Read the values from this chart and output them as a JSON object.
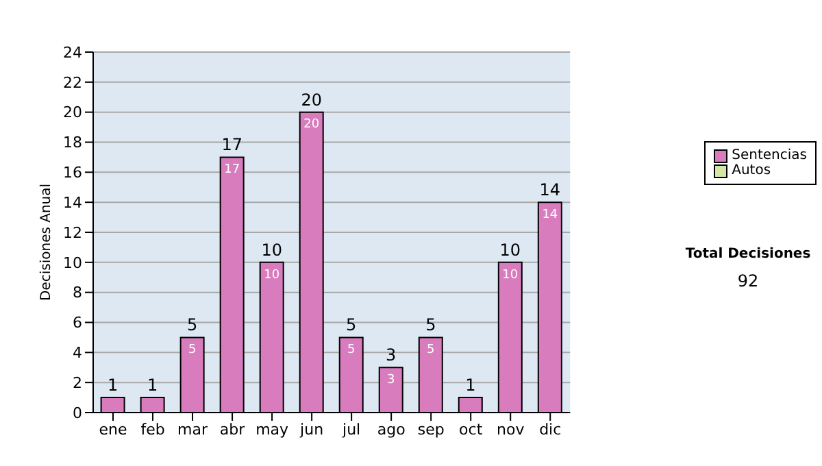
{
  "chart_data": {
    "type": "bar",
    "ylabel": "Decisiones Anual",
    "categories": [
      "ene",
      "feb",
      "mar",
      "abr",
      "may",
      "jun",
      "jul",
      "ago",
      "sep",
      "oct",
      "nov",
      "dic"
    ],
    "series": [
      {
        "name": "Sentencias",
        "color": "#d97cbe",
        "values": [
          1,
          1,
          5,
          17,
          10,
          20,
          5,
          3,
          5,
          1,
          10,
          14
        ],
        "value_labels": [
          null,
          null,
          "5",
          "17",
          "10",
          "20",
          "5",
          "3",
          "5",
          null,
          "10",
          "14"
        ]
      },
      {
        "name": "Autos",
        "color": "#d4e6a6",
        "values": [
          0,
          0,
          0,
          0,
          0,
          0,
          0,
          0,
          0,
          0,
          0,
          0
        ]
      }
    ],
    "stacked": true,
    "totals": [
      "1",
      "1",
      "5",
      "17",
      "10",
      "20",
      "5",
      "3",
      "5",
      "1",
      "10",
      "14"
    ],
    "ylim": [
      0,
      24
    ],
    "yticks": [
      0,
      2,
      4,
      6,
      8,
      10,
      12,
      14,
      16,
      18,
      20,
      22,
      24
    ],
    "grid": "y",
    "legend": "right",
    "annotations": [
      "Total Decisiones",
      "92"
    ]
  }
}
